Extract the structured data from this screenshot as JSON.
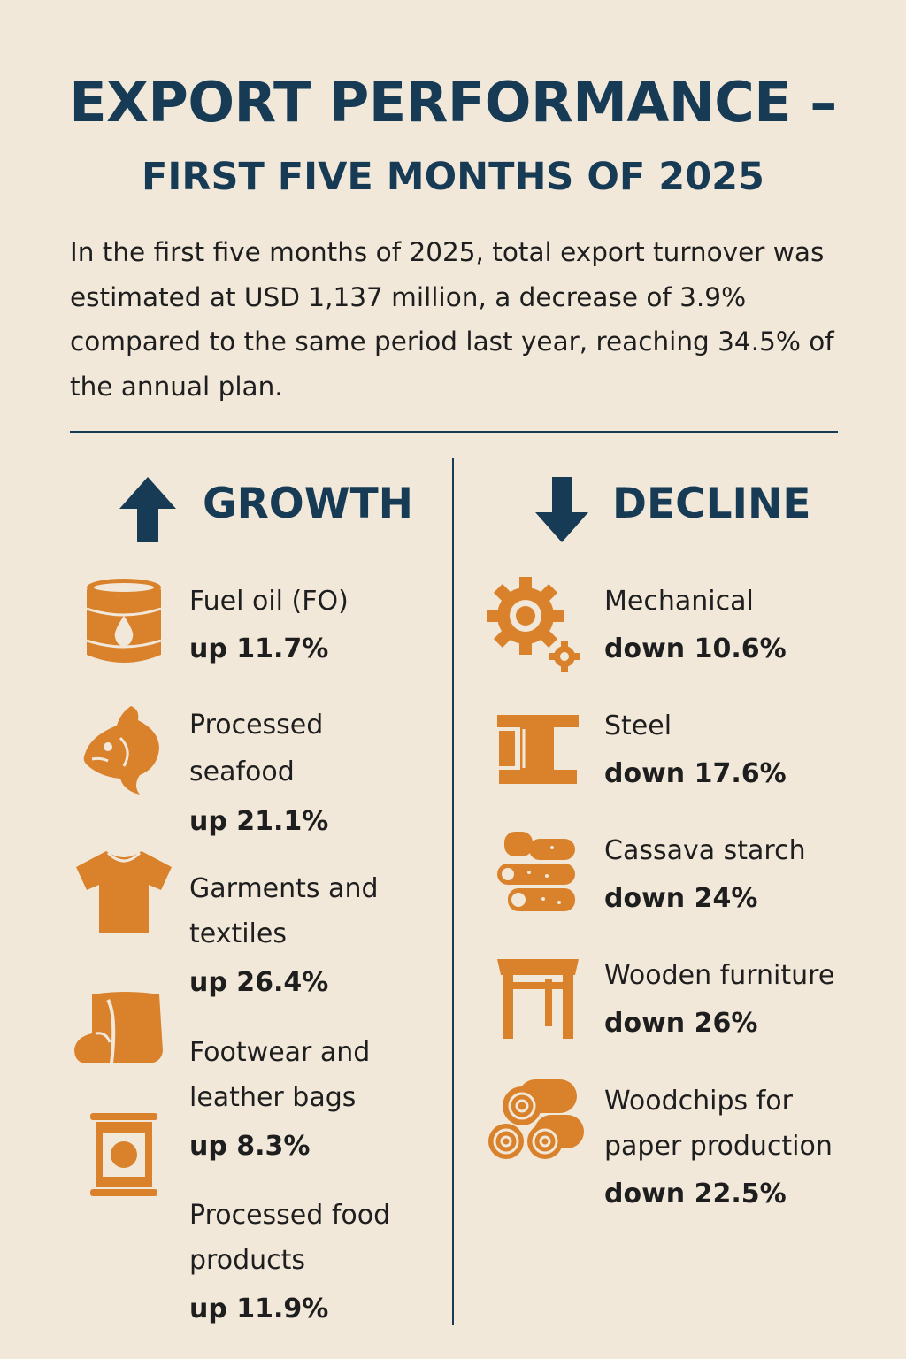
{
  "title": "EXPORT PERFORMANCE –",
  "subtitle": "FIRST FIVE MONTHS OF 2025",
  "intro": "In the first five months of 2025, total export turnover was estimated at USD 1,137 million, a decrease of 3.9% compared to the same period last year, reaching 34.5% of the annual plan.",
  "colors": {
    "heading": "#173b55",
    "icon": "#d9822b",
    "background": "#f1e8da"
  },
  "growth": {
    "heading": "GROWTH",
    "icon": "arrow-up-icon",
    "items": [
      {
        "label_lines": [
          "Fuel oil (FO)"
        ],
        "change": "up 11.7%",
        "icon": "oil-barrel-icon"
      },
      {
        "label_lines": [
          "Processed",
          "seafood"
        ],
        "change": "up 21.1%",
        "icon": "fish-icon"
      },
      {
        "label_lines": [
          "Garments and",
          "textiles"
        ],
        "change": "up 26.4%",
        "icon": "tshirt-icon"
      },
      {
        "label_lines": [
          "Footwear and",
          "leather bags"
        ],
        "change": "up 8.3%",
        "icon": "boot-icon"
      },
      {
        "label_lines": [
          "Processed food",
          "products"
        ],
        "change": "up 11.9%",
        "icon": "food-can-icon"
      }
    ]
  },
  "decline": {
    "heading": "DECLINE",
    "icon": "arrow-down-icon",
    "items": [
      {
        "label_lines": [
          "Mechanical"
        ],
        "change": "down 10.6%",
        "icon": "gears-icon"
      },
      {
        "label_lines": [
          "Steel"
        ],
        "change": "down 17.6%",
        "icon": "steel-beam-icon"
      },
      {
        "label_lines": [
          "Cassava starch"
        ],
        "change": "down 24%",
        "icon": "cassava-icon"
      },
      {
        "label_lines": [
          "Wooden furniture"
        ],
        "change": "down 26%",
        "icon": "table-icon"
      },
      {
        "label_lines": [
          "Woodchips for",
          "paper production"
        ],
        "change": "down 22.5%",
        "icon": "logs-icon"
      }
    ]
  }
}
